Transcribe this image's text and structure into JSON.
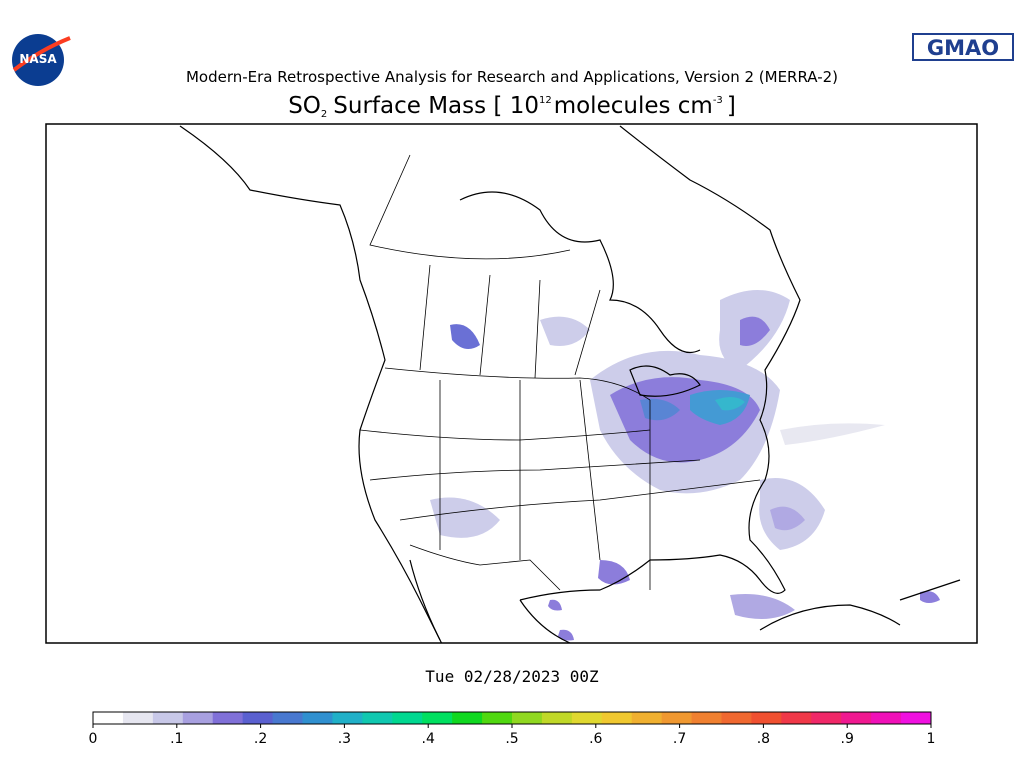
{
  "header": {
    "logo_left": "NASA",
    "logo_right": "GMAO",
    "subtitle": "Modern-Era Retrospective Analysis for Research and Applications, Version 2 (MERRA-2)",
    "title": {
      "species": "SO",
      "species_sub": "2",
      "main": "Surface Mass [ 10",
      "exponent": "12",
      "unit": "molecules cm",
      "unit_exp": "-3",
      "close": "]"
    }
  },
  "map": {
    "date": "Tue 02/28/2023 00Z"
  },
  "colorbar": {
    "range": [
      0,
      1
    ],
    "colors": [
      "#ffffff",
      "#e6e6f0",
      "#c8c8e8",
      "#a8a0e0",
      "#8070d8",
      "#5a60d0",
      "#4878d0",
      "#3090d0",
      "#20b0c8",
      "#10c8b0",
      "#00d890",
      "#00e060",
      "#10d820",
      "#50d810",
      "#90d820",
      "#c0d828",
      "#e0d830",
      "#f0c830",
      "#f0b030",
      "#f09830",
      "#f08030",
      "#f06830",
      "#f05030",
      "#f03848",
      "#f02868",
      "#f01890",
      "#f010b8",
      "#f010e0"
    ],
    "ticks": [
      0,
      {
        "value": 0.1,
        "label": ".1"
      },
      {
        "value": 0.2,
        "label": ".2"
      },
      {
        "value": 0.3,
        "label": ".3"
      },
      {
        "value": 0.4,
        "label": ".4"
      },
      {
        "value": 0.5,
        "label": ".5"
      },
      {
        "value": 0.6,
        "label": ".6"
      },
      {
        "value": 0.7,
        "label": ".7"
      },
      {
        "value": 0.8,
        "label": ".8"
      },
      {
        "value": 0.9,
        "label": ".9"
      },
      1
    ]
  }
}
